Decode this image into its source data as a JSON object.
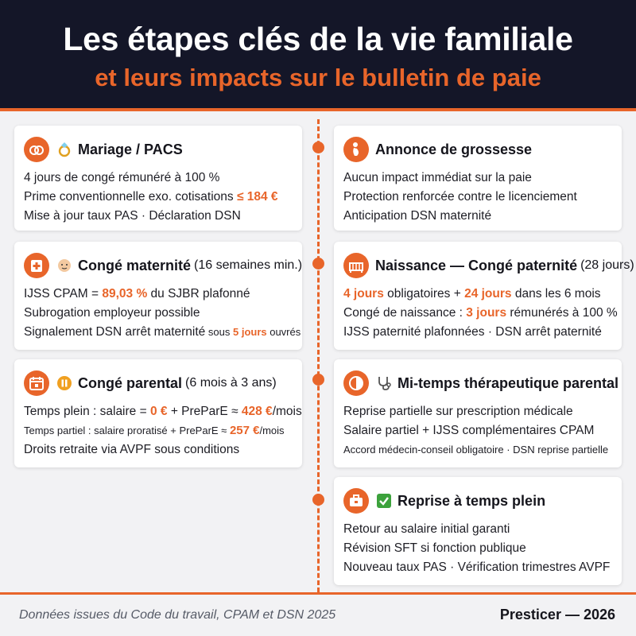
{
  "header": {
    "title": "Les étapes clés de la vie familiale",
    "subtitle": "et leurs impacts sur le bulletin de paie"
  },
  "cards": {
    "mariage": {
      "icon": "rings-icon",
      "emoji": "ring-emoji",
      "title": "Mariage / PACS",
      "l1": "4 jours de congé rémunéré à 100 %",
      "l2a": "Prime conventionnelle exo. cotisations ",
      "l2b": "≤ 184 €",
      "l3": "Mise à jour taux PAS · Déclaration DSN"
    },
    "grossesse": {
      "icon": "pregnancy-icon",
      "title": "Annonce de grossesse",
      "l1": "Aucun impact immédiat sur la paie",
      "l2": "Protection renforcée contre le licenciement",
      "l3": "Anticipation DSN maternité"
    },
    "maternite": {
      "icon": "medical-icon",
      "emoji": "baby-emoji",
      "title": "Congé maternité",
      "note": "(16 semaines min.)",
      "l1a": "IJSS CPAM = ",
      "l1b": "89,03 %",
      "l1c": " du SJBR plafonné",
      "l2": "Subrogation employeur possible",
      "l3a": "Signalement DSN arrêt maternité",
      "l3b": " sous ",
      "l3c": "5 jours",
      "l3d": " ouvrés"
    },
    "naissance": {
      "icon": "crib-icon",
      "title": "Naissance — Congé paternité",
      "note": "(28 jours)",
      "l1a": "4 jours",
      "l1b": " obligatoires + ",
      "l1c": "24 jours",
      "l1d": " dans les 6 mois",
      "l2a": "Congé de naissance : ",
      "l2b": "3 jours",
      "l2c": " rémunérés à 100 %",
      "l3": "IJSS paternité plafonnées · DSN arrêt paternité"
    },
    "parental": {
      "icon": "calendar-icon",
      "emoji": "pause-emoji",
      "title": "Congé parental",
      "note": "(6 mois à 3 ans)",
      "l1a": "Temps plein : salaire = ",
      "l1b": "0 €",
      "l1c": " + PreParE ≈ ",
      "l1d": "428 €",
      "l1e": "/mois",
      "l2a": "Temps partiel : salaire proratisé + PreParE ≈ ",
      "l2b": "257 €",
      "l2c": "/mois",
      "l3": "Droits retraite via AVPF sous conditions"
    },
    "mitemps": {
      "icon": "clock-icon",
      "emoji": "stethoscope-emoji",
      "title": "Mi-temps thérapeutique parental",
      "l1": "Reprise partielle sur prescription médicale",
      "l2": "Salaire partiel + IJSS complémentaires CPAM",
      "l3": "Accord médecin-conseil obligatoire · DSN reprise partielle"
    },
    "reprise": {
      "icon": "briefcase-icon",
      "emoji": "check-emoji",
      "title": "Reprise à temps plein",
      "l1": "Retour au salaire initial garanti",
      "l2": "Révision SFT si fonction publique",
      "l3": "Nouveau taux PAS · Vérification trimestres AVPF"
    }
  },
  "footer": {
    "source": "Données issues du Code du travail, CPAM et DSN 2025",
    "brand": "Presticer — 2026"
  },
  "colors": {
    "accent": "#e8652a",
    "header_bg": "#141628",
    "card_bg": "#ffffff",
    "page_bg": "#f2f2f4"
  }
}
